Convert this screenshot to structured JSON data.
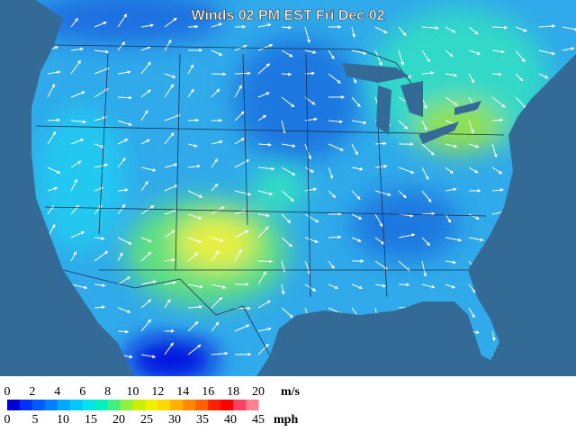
{
  "title": "Winds 02 PM EST Fri Dec 02",
  "legend": {
    "ms_labels": [
      0,
      2,
      4,
      6,
      8,
      10,
      12,
      14,
      16,
      18,
      20
    ],
    "ms_unit": "m/s",
    "mph_labels": [
      0,
      5,
      10,
      15,
      20,
      25,
      30,
      35,
      40,
      45
    ],
    "mph_unit": "mph",
    "colors": [
      "#0000d0",
      "#0030ff",
      "#0058ff",
      "#0080ff",
      "#00a8ff",
      "#00c8ff",
      "#00e4f0",
      "#00f0c0",
      "#40f080",
      "#90f040",
      "#c8f000",
      "#f0f000",
      "#ffd800",
      "#ffb000",
      "#ff8800",
      "#ff6000",
      "#ff2000",
      "#ff0000",
      "#ff4060",
      "#ff8090"
    ]
  }
}
